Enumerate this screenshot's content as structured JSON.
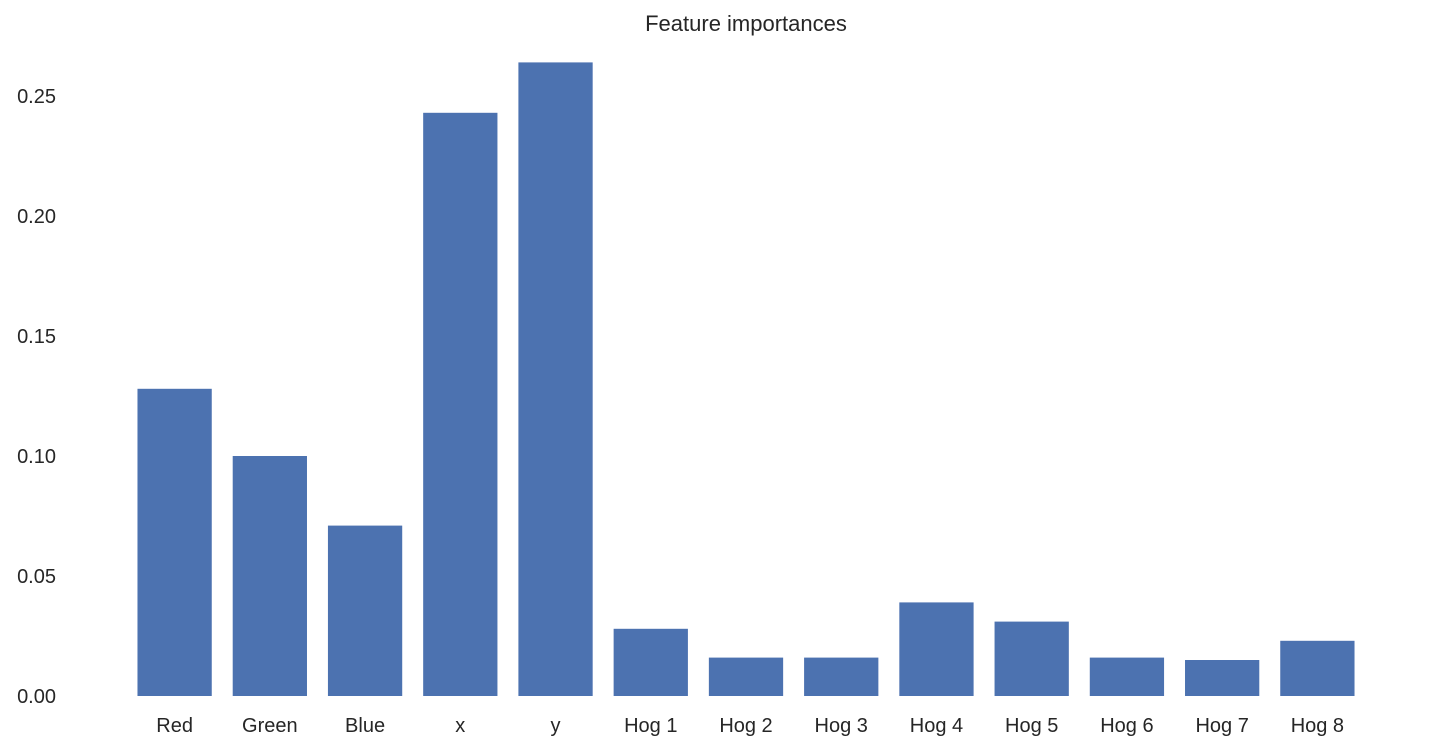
{
  "chart_data": {
    "type": "bar",
    "title": "Feature importances",
    "xlabel": "",
    "ylabel": "",
    "categories": [
      "Red",
      "Green",
      "Blue",
      "x",
      "y",
      "Hog 1",
      "Hog 2",
      "Hog 3",
      "Hog 4",
      "Hog 5",
      "Hog 6",
      "Hog 7",
      "Hog 8"
    ],
    "values": [
      0.128,
      0.1,
      0.071,
      0.243,
      0.264,
      0.028,
      0.016,
      0.016,
      0.039,
      0.031,
      0.016,
      0.015,
      0.023
    ],
    "ylim": [
      0,
      0.27
    ],
    "yticks": [
      "0.00",
      "0.05",
      "0.10",
      "0.15",
      "0.20",
      "0.25"
    ],
    "grid": false,
    "legend": "none",
    "colors": {
      "bar": "#4c72b0",
      "text": "#262626",
      "background": "#ffffff"
    }
  }
}
